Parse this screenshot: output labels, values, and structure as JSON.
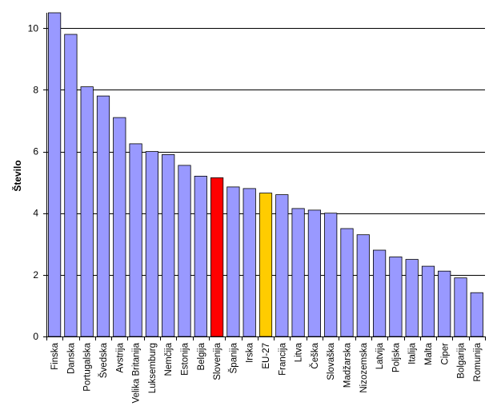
{
  "chart_data": {
    "type": "bar",
    "title": "",
    "xlabel": "",
    "ylabel": "Število",
    "ylim": [
      0,
      10.5
    ],
    "yticks": [
      0,
      2,
      4,
      6,
      8,
      10
    ],
    "grid": "horizontal",
    "categories": [
      "Finska",
      "Danska",
      "Portugalska",
      "Švedska",
      "Avstrija",
      "Velika Britanija",
      "Luksemburg",
      "Nemčija",
      "Estonija",
      "Belgija",
      "Slovenija",
      "Španija",
      "Irska",
      "EU-27",
      "Francija",
      "Litva",
      "Češka",
      "Slovaška",
      "Madžarska",
      "Nizozemska",
      "Latvija",
      "Poljska",
      "Italija",
      "Malta",
      "Ciper",
      "Bolgarija",
      "Romunija"
    ],
    "values": [
      10.5,
      9.8,
      8.1,
      7.8,
      7.1,
      6.25,
      6.0,
      5.9,
      5.55,
      5.2,
      5.15,
      4.85,
      4.8,
      4.65,
      4.6,
      4.15,
      4.1,
      4.0,
      3.5,
      3.3,
      2.8,
      2.58,
      2.5,
      2.28,
      2.12,
      1.9,
      1.42
    ],
    "colors": {
      "default": "#9999ff",
      "highlight": {
        "Slovenija": "#ff0000",
        "EU-27": "#ffcc00"
      },
      "gridline": "#000000",
      "bar_border": "#000000"
    }
  }
}
